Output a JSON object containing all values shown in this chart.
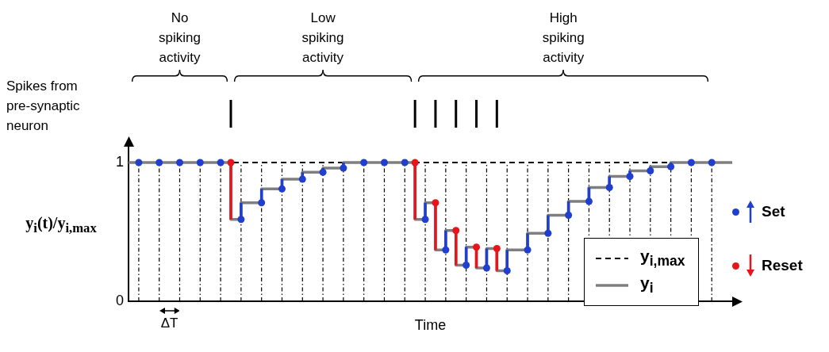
{
  "chart_data": {
    "type": "step",
    "annotations": [
      "No spiking activity",
      "Low spiking activity",
      "High spiking activity",
      "Spikes from pre-synaptic neuron",
      "ΔT"
    ],
    "xlabel": "Time",
    "ylabel": "y$_{i}$(t)/y$_{i,max}$",
    "categories": [
      null,
      null,
      null,
      null,
      null,
      null,
      null,
      null,
      null,
      null,
      null,
      null,
      null,
      null,
      null,
      null,
      null,
      null,
      null,
      null,
      null,
      null,
      null,
      null,
      null,
      null,
      null,
      null,
      null,
      null,
      null,
      null,
      null,
      null,
      null,
      null,
      null,
      null,
      null,
      null,
      null,
      null,
      null,
      null,
      null,
      null,
      null,
      null,
      null,
      null,
      null,
      null,
      null,
      null,
      null,
      null,
      null,
      null,
      null,
      null
    ],
    "ylim": [
      0,
      1.12
    ],
    "yticks": [
      0,
      1
    ],
    "grid": "x",
    "legend": "bottom right",
    "series": [
      {
        "name": "y$_{i,max}$",
        "type": "line",
        "line_style": "dashed",
        "color": "#000000",
        "values": [
          1,
          1,
          1,
          1,
          1,
          1,
          1,
          1,
          1,
          1,
          1,
          1,
          1,
          1,
          1,
          1,
          1,
          1,
          1,
          1,
          1,
          1,
          1,
          1,
          1,
          1,
          1,
          1,
          1,
          1,
          1,
          1,
          1,
          1,
          1,
          1,
          1,
          1,
          1,
          1,
          1,
          1,
          1,
          1,
          1,
          1,
          1,
          1,
          1,
          1,
          1,
          1,
          1,
          1,
          1,
          1,
          1,
          1,
          1,
          1
        ]
      },
      {
        "name": "y$_{i}$",
        "color": "#7f7f7f",
        "values": [
          1,
          1,
          1,
          1,
          1,
          1,
          1,
          1,
          1,
          1,
          0.59,
          0.71,
          0.71,
          0.81,
          0.81,
          0.88,
          0.88,
          0.93,
          0.93,
          0.96,
          0.96,
          1,
          1,
          1,
          1,
          1,
          1,
          1,
          0.59,
          0.71,
          0.37,
          0.51,
          0.26,
          0.39,
          0.24,
          0.38,
          0.22,
          0.37,
          0.37,
          0.49,
          0.49,
          0.62,
          0.62,
          0.72,
          0.72,
          0.82,
          0.82,
          0.9,
          0.9,
          0.94,
          0.94,
          0.97,
          0.97,
          1,
          1,
          1,
          1,
          1,
          1,
          1
        ]
      },
      {
        "name": "Set",
        "type": "scatter",
        "marker": "circle",
        "color": "#1f3fcc",
        "values": [
          null,
          1,
          null,
          1,
          null,
          1,
          null,
          1,
          null,
          1,
          null,
          0.59,
          null,
          0.71,
          null,
          0.81,
          null,
          0.88,
          null,
          0.93,
          null,
          0.96,
          null,
          1,
          null,
          1,
          null,
          1,
          null,
          0.59,
          null,
          0.37,
          null,
          0.26,
          null,
          0.24,
          null,
          0.22,
          null,
          0.37,
          null,
          0.49,
          null,
          0.62,
          null,
          0.72,
          null,
          0.82,
          null,
          0.9,
          null,
          0.94,
          null,
          0.97,
          null,
          1,
          null,
          1,
          null,
          null
        ],
        "errors": [
          null,
          null,
          null,
          null,
          null,
          null,
          null,
          null,
          null,
          null,
          null,
          [
            0.59,
            0.71
          ],
          null,
          [
            0.71,
            0.81
          ],
          null,
          [
            0.81,
            0.88
          ],
          null,
          [
            0.88,
            0.93
          ],
          null,
          [
            0.93,
            0.96
          ],
          null,
          [
            0.96,
            1
          ],
          null,
          null,
          null,
          null,
          null,
          null,
          null,
          [
            0.59,
            0.71
          ],
          null,
          [
            0.37,
            0.51
          ],
          null,
          [
            0.26,
            0.39
          ],
          null,
          [
            0.24,
            0.38
          ],
          null,
          [
            0.22,
            0.37
          ],
          null,
          [
            0.37,
            0.49
          ],
          null,
          [
            0.49,
            0.62
          ],
          null,
          [
            0.62,
            0.72
          ],
          null,
          [
            0.72,
            0.82
          ],
          null,
          [
            0.82,
            0.9
          ],
          null,
          [
            0.9,
            0.94
          ],
          null,
          [
            0.94,
            0.97
          ],
          null,
          [
            0.97,
            1
          ],
          null,
          null,
          null,
          null,
          null,
          null
        ]
      },
      {
        "name": "Reset",
        "type": "scatter",
        "marker": "circle",
        "color": "#e8141c",
        "values": [
          null,
          null,
          null,
          null,
          null,
          null,
          null,
          null,
          null,
          null,
          1,
          null,
          null,
          null,
          null,
          null,
          null,
          null,
          null,
          null,
          null,
          null,
          null,
          null,
          null,
          null,
          null,
          null,
          1,
          null,
          0.71,
          null,
          0.51,
          null,
          0.39,
          null,
          0.38,
          null,
          null,
          null,
          null,
          null,
          null,
          null,
          null,
          null,
          null,
          null,
          null,
          null,
          null,
          null,
          null,
          null,
          null,
          null,
          null,
          null,
          null,
          null
        ],
        "errors": [
          null,
          null,
          null,
          null,
          null,
          null,
          null,
          null,
          null,
          null,
          [
            0.59,
            1
          ],
          null,
          null,
          null,
          null,
          null,
          null,
          null,
          null,
          null,
          null,
          null,
          null,
          null,
          null,
          null,
          null,
          null,
          [
            0.59,
            1
          ],
          null,
          [
            0.37,
            0.71
          ],
          null,
          [
            0.26,
            0.51
          ],
          null,
          [
            0.24,
            0.39
          ],
          null,
          [
            0.22,
            0.38
          ],
          null,
          null,
          null,
          null,
          null,
          null,
          null,
          null,
          null,
          null,
          null,
          null,
          null,
          null,
          null,
          null,
          null,
          null,
          null,
          null,
          null,
          null,
          null
        ]
      }
    ]
  }
}
